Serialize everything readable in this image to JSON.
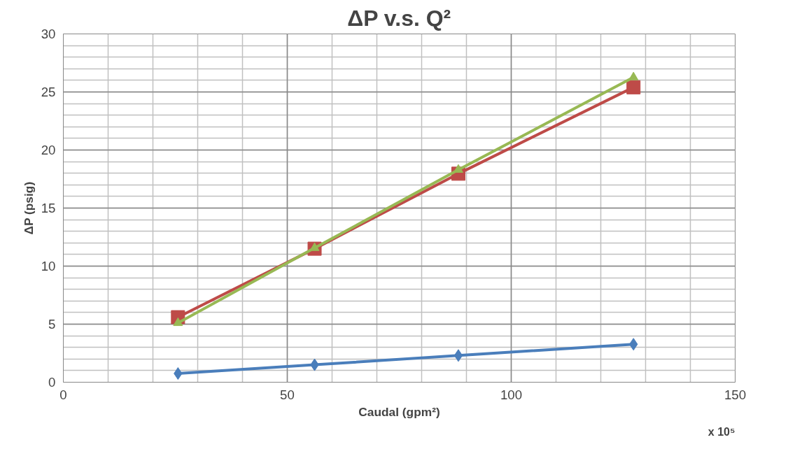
{
  "chart_data": {
    "type": "line",
    "title": "ΔP v.s. Q²",
    "xlabel": "Caudal (gpm²)",
    "ylabel": "ΔP (psig)",
    "annotations": [
      "x 10⁵"
    ],
    "x": [
      25.6,
      56.1,
      88.2,
      127.3
    ],
    "series": [
      {
        "color": "#4a7ebb",
        "marker": "diamond",
        "values": [
          0.75,
          1.5,
          2.3,
          3.27
        ]
      },
      {
        "color": "#be4b48",
        "marker": "square",
        "values": [
          5.6,
          11.5,
          17.96,
          25.4
        ]
      },
      {
        "color": "#98b954",
        "marker": "triangle",
        "values": [
          5.1,
          11.56,
          18.3,
          26.26
        ]
      }
    ],
    "xlim": [
      0,
      150
    ],
    "ylim": [
      0,
      30
    ],
    "xticks": [
      0,
      {
        "value": 10,
        "label": null
      },
      {
        "value": 20,
        "label": null
      },
      {
        "value": 30,
        "label": null
      },
      {
        "value": 40,
        "label": null
      },
      50,
      {
        "value": 60,
        "label": null
      },
      {
        "value": 70,
        "label": null
      },
      {
        "value": 80,
        "label": null
      },
      {
        "value": 90,
        "label": null
      },
      100,
      {
        "value": 110,
        "label": null
      },
      {
        "value": 120,
        "label": null
      },
      {
        "value": 130,
        "label": null
      },
      {
        "value": 140,
        "label": null
      },
      150
    ],
    "yticks": [
      0,
      {
        "value": 1,
        "label": null
      },
      {
        "value": 2,
        "label": null
      },
      {
        "value": 3,
        "label": null
      },
      {
        "value": 4,
        "label": null
      },
      5,
      {
        "value": 6,
        "label": null
      },
      {
        "value": 7,
        "label": null
      },
      {
        "value": 8,
        "label": null
      },
      {
        "value": 9,
        "label": null
      },
      10,
      {
        "value": 11,
        "label": null
      },
      {
        "value": 12,
        "label": null
      },
      {
        "value": 13,
        "label": null
      },
      {
        "value": 14,
        "label": null
      },
      15,
      {
        "value": 16,
        "label": null
      },
      {
        "value": 17,
        "label": null
      },
      {
        "value": 18,
        "label": null
      },
      {
        "value": 19,
        "label": null
      },
      20,
      {
        "value": 21,
        "label": null
      },
      {
        "value": 22,
        "label": null
      },
      {
        "value": 23,
        "label": null
      },
      {
        "value": 24,
        "label": null
      },
      25,
      {
        "value": 26,
        "label": null
      },
      {
        "value": 27,
        "label": null
      },
      {
        "value": 28,
        "label": null
      },
      {
        "value": 29,
        "label": null
      },
      30
    ],
    "grid": true,
    "line_style": "solid"
  }
}
